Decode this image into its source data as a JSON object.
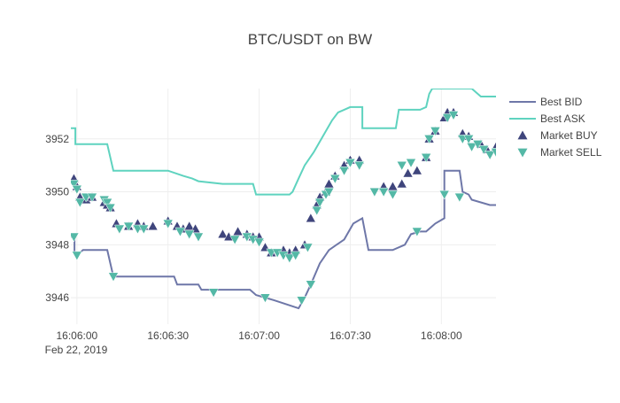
{
  "chart_data": {
    "type": "line",
    "title": "BTC/USDT on BW",
    "xlabel": "",
    "ylabel": "",
    "x_tick_labels": [
      "16:06:00",
      "16:06:30",
      "16:07:00",
      "16:07:30",
      "16:08:00"
    ],
    "x_tick_seconds": [
      0,
      30,
      60,
      90,
      120
    ],
    "x_date_label": "Feb 22, 2019",
    "xlim_seconds": [
      -2,
      138
    ],
    "y_tick_labels": [
      "3946",
      "3948",
      "3950",
      "3952"
    ],
    "y_ticks": [
      3946,
      3948,
      3950,
      3952
    ],
    "ylim": [
      3945,
      3953.9
    ],
    "grid": true,
    "legend_position": "right",
    "colors": {
      "bid": "#6e77a8",
      "ask": "#5fd3bf",
      "buy": "#3f457c",
      "sell": "#54b8a6",
      "grid": "#eeeeee",
      "text": "#444444"
    },
    "series": [
      {
        "name": "Best BID",
        "kind": "step-line",
        "points": [
          [
            -2,
            3948.3
          ],
          [
            -0.8,
            3948.3
          ],
          [
            -0.8,
            3947.7
          ],
          [
            1,
            3947.7
          ],
          [
            2,
            3947.8
          ],
          [
            10,
            3947.8
          ],
          [
            12,
            3946.8
          ],
          [
            32,
            3946.8
          ],
          [
            33,
            3946.5
          ],
          [
            40,
            3946.5
          ],
          [
            41,
            3946.3
          ],
          [
            57,
            3946.3
          ],
          [
            59,
            3946.1
          ],
          [
            62,
            3946.0
          ],
          [
            65,
            3945.9
          ],
          [
            73,
            3945.6
          ],
          [
            75,
            3946.0
          ],
          [
            77,
            3946.5
          ],
          [
            80,
            3947.3
          ],
          [
            83,
            3947.8
          ],
          [
            88,
            3948.2
          ],
          [
            91,
            3948.8
          ],
          [
            94,
            3949.0
          ],
          [
            96,
            3947.8
          ],
          [
            104,
            3947.8
          ],
          [
            108,
            3948.0
          ],
          [
            110,
            3948.4
          ],
          [
            113,
            3948.5
          ],
          [
            115,
            3948.5
          ],
          [
            118,
            3948.8
          ],
          [
            121,
            3949.0
          ],
          [
            121,
            3950.8
          ],
          [
            126,
            3950.8
          ],
          [
            127,
            3950.0
          ],
          [
            129,
            3949.9
          ],
          [
            130,
            3949.7
          ],
          [
            136,
            3949.5
          ],
          [
            138,
            3949.5
          ]
        ]
      },
      {
        "name": "Best ASK",
        "kind": "step-line",
        "points": [
          [
            -2,
            3952.4
          ],
          [
            -0.5,
            3952.4
          ],
          [
            -0.5,
            3951.8
          ],
          [
            10,
            3951.8
          ],
          [
            12,
            3950.8
          ],
          [
            30,
            3950.8
          ],
          [
            35,
            3950.6
          ],
          [
            38,
            3950.5
          ],
          [
            40,
            3950.4
          ],
          [
            48,
            3950.3
          ],
          [
            58,
            3950.3
          ],
          [
            59,
            3949.9
          ],
          [
            70,
            3949.9
          ],
          [
            71,
            3950.0
          ],
          [
            73,
            3950.5
          ],
          [
            75,
            3951.0
          ],
          [
            78,
            3951.5
          ],
          [
            81,
            3952.1
          ],
          [
            84,
            3952.7
          ],
          [
            86,
            3953.0
          ],
          [
            88,
            3953.1
          ],
          [
            90,
            3953.2
          ],
          [
            94,
            3953.2
          ],
          [
            94,
            3952.4
          ],
          [
            105,
            3952.4
          ],
          [
            106,
            3953.1
          ],
          [
            113,
            3953.1
          ],
          [
            115,
            3953.2
          ],
          [
            116,
            3953.7
          ],
          [
            117,
            3953.9
          ],
          [
            117,
            3953.9
          ],
          [
            130,
            3953.9
          ],
          [
            133,
            3953.6
          ],
          [
            138,
            3953.6
          ]
        ]
      },
      {
        "name": "Market BUY",
        "kind": "triangle-up",
        "points": [
          [
            -1,
            3950.5
          ],
          [
            0,
            3950.2
          ],
          [
            1,
            3949.8
          ],
          [
            3,
            3949.7
          ],
          [
            5,
            3949.8
          ],
          [
            9,
            3949.6
          ],
          [
            10,
            3949.5
          ],
          [
            11,
            3949.4
          ],
          [
            13,
            3948.8
          ],
          [
            17,
            3948.7
          ],
          [
            20,
            3948.8
          ],
          [
            22,
            3948.7
          ],
          [
            25,
            3948.7
          ],
          [
            30,
            3948.9
          ],
          [
            33,
            3948.7
          ],
          [
            35,
            3948.6
          ],
          [
            37,
            3948.7
          ],
          [
            39,
            3948.6
          ],
          [
            48,
            3948.4
          ],
          [
            50,
            3948.3
          ],
          [
            53,
            3948.5
          ],
          [
            56,
            3948.4
          ],
          [
            58,
            3948.3
          ],
          [
            60,
            3948.3
          ],
          [
            62,
            3947.9
          ],
          [
            64,
            3947.7
          ],
          [
            68,
            3947.8
          ],
          [
            70,
            3947.7
          ],
          [
            72,
            3947.8
          ],
          [
            75,
            3948.0
          ],
          [
            77,
            3949.0
          ],
          [
            79,
            3949.5
          ],
          [
            80,
            3949.8
          ],
          [
            82,
            3950.0
          ],
          [
            83,
            3950.3
          ],
          [
            85,
            3950.6
          ],
          [
            88,
            3951.0
          ],
          [
            90,
            3951.2
          ],
          [
            93,
            3951.2
          ],
          [
            101,
            3950.2
          ],
          [
            104,
            3950.2
          ],
          [
            107,
            3950.3
          ],
          [
            109,
            3950.7
          ],
          [
            112,
            3950.8
          ],
          [
            115,
            3951.3
          ],
          [
            116,
            3952.0
          ],
          [
            118,
            3952.3
          ],
          [
            121,
            3952.8
          ],
          [
            122,
            3953.0
          ],
          [
            124,
            3953.0
          ],
          [
            127,
            3952.2
          ],
          [
            129,
            3952.1
          ],
          [
            133,
            3951.8
          ],
          [
            135,
            3951.6
          ],
          [
            138,
            3951.7
          ]
        ]
      },
      {
        "name": "Market SELL",
        "kind": "triangle-down",
        "points": [
          [
            -1,
            3948.3
          ],
          [
            0,
            3947.6
          ],
          [
            -1,
            3950.3
          ],
          [
            0,
            3950.1
          ],
          [
            1,
            3949.6
          ],
          [
            3,
            3949.8
          ],
          [
            5,
            3949.8
          ],
          [
            9,
            3949.7
          ],
          [
            10,
            3949.6
          ],
          [
            11,
            3949.4
          ],
          [
            12,
            3946.8
          ],
          [
            14,
            3948.6
          ],
          [
            17,
            3948.7
          ],
          [
            20,
            3948.6
          ],
          [
            22,
            3948.6
          ],
          [
            30,
            3948.8
          ],
          [
            34,
            3948.5
          ],
          [
            37,
            3948.4
          ],
          [
            40,
            3948.3
          ],
          [
            45,
            3946.2
          ],
          [
            52,
            3948.2
          ],
          [
            56,
            3948.3
          ],
          [
            58,
            3948.2
          ],
          [
            60,
            3948.1
          ],
          [
            62,
            3946.0
          ],
          [
            64,
            3947.7
          ],
          [
            66,
            3947.7
          ],
          [
            68,
            3947.6
          ],
          [
            70,
            3947.5
          ],
          [
            72,
            3947.6
          ],
          [
            74,
            3945.9
          ],
          [
            76,
            3947.9
          ],
          [
            77,
            3946.5
          ],
          [
            79,
            3949.3
          ],
          [
            80,
            3949.6
          ],
          [
            82,
            3949.9
          ],
          [
            83,
            3950.0
          ],
          [
            85,
            3950.5
          ],
          [
            88,
            3950.8
          ],
          [
            90,
            3951.1
          ],
          [
            93,
            3951.0
          ],
          [
            98,
            3950.0
          ],
          [
            101,
            3950.0
          ],
          [
            104,
            3949.9
          ],
          [
            107,
            3951.0
          ],
          [
            110,
            3951.1
          ],
          [
            112,
            3948.5
          ],
          [
            115,
            3951.3
          ],
          [
            116,
            3952.0
          ],
          [
            118,
            3952.3
          ],
          [
            121,
            3949.9
          ],
          [
            122,
            3952.8
          ],
          [
            124,
            3952.9
          ],
          [
            126,
            3949.8
          ],
          [
            127,
            3952.0
          ],
          [
            129,
            3952.0
          ],
          [
            130,
            3951.7
          ],
          [
            132,
            3951.8
          ],
          [
            134,
            3951.6
          ],
          [
            136,
            3951.4
          ],
          [
            138,
            3951.5
          ]
        ]
      }
    ]
  }
}
